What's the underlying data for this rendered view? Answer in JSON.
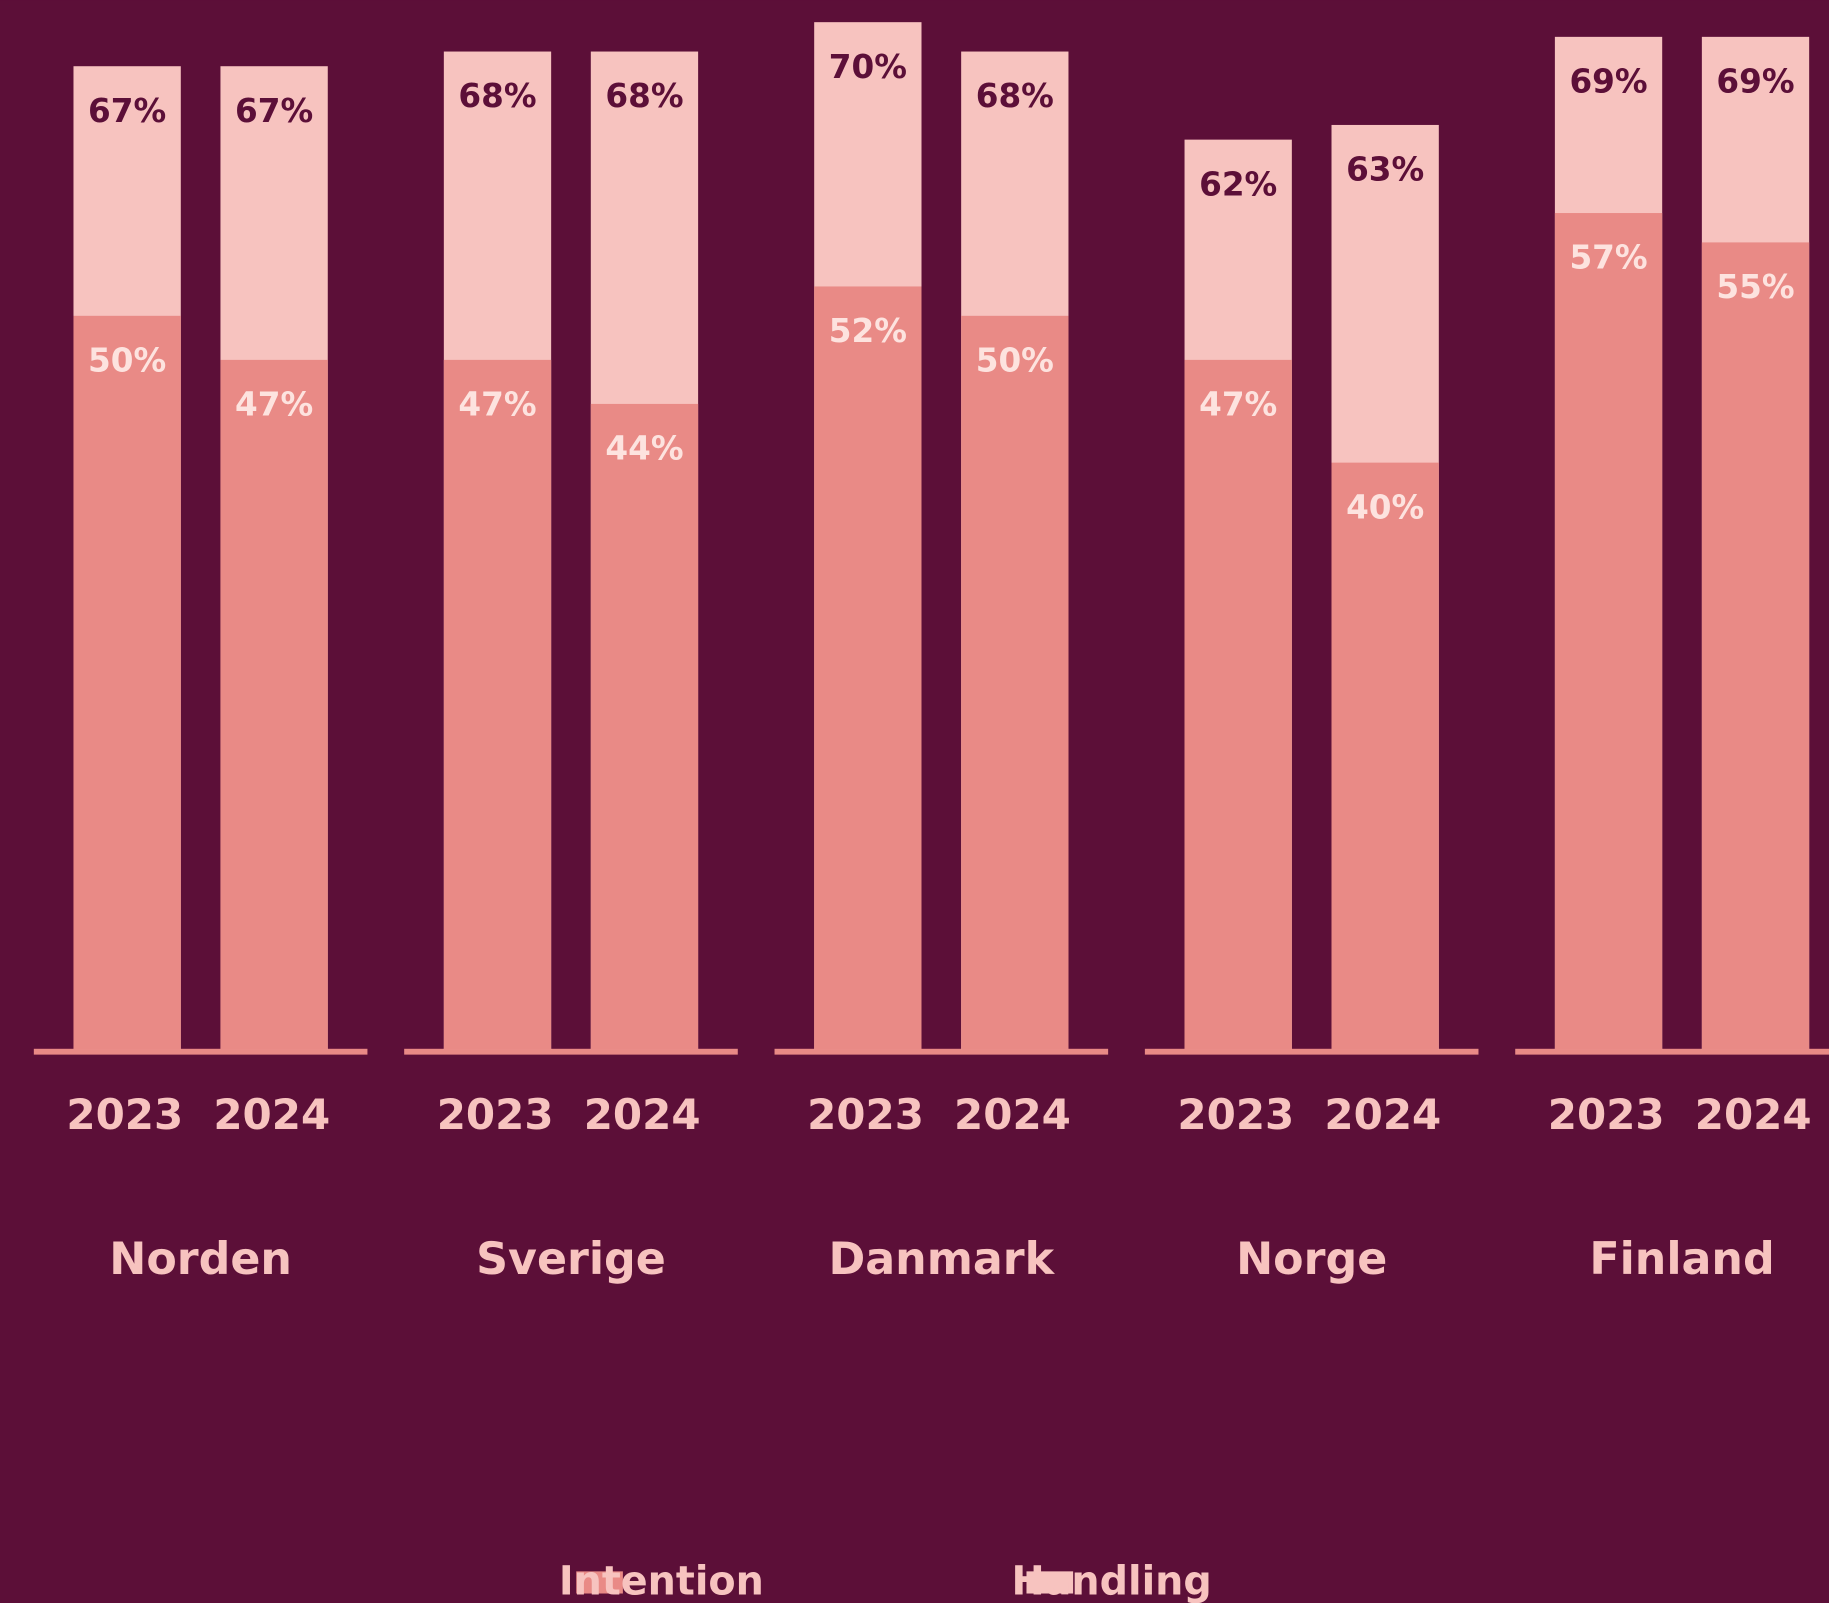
{
  "chart_data": {
    "type": "overlap_bar",
    "groups": [
      "Norden",
      "Sverige",
      "Danmark",
      "Norge",
      "Finland"
    ],
    "x": [
      "2023",
      "2024",
      "2023",
      "2024",
      "2023",
      "2024",
      "2023",
      "2024",
      "2023",
      "2024"
    ],
    "ylim": [
      0,
      71.5
    ],
    "background": "#5c0f38",
    "series": [
      {
        "name": "Intention",
        "color": "#e98a86",
        "label_color": "#fde3df",
        "values": [
          50,
          47,
          47,
          44,
          52,
          50,
          47,
          40,
          57,
          55
        ],
        "value_labels": [
          "50%",
          "47%",
          "47%",
          "44%",
          "52%",
          "50%",
          "47%",
          "40%",
          "57%",
          "55%"
        ]
      },
      {
        "name": "Handling",
        "color": "#f7c3bf",
        "label_color": "#5c0f38",
        "values": [
          67,
          67,
          68,
          68,
          70,
          68,
          62,
          63,
          69,
          69
        ],
        "value_labels": [
          "67%",
          "67%",
          "68%",
          "68%",
          "70%",
          "68%",
          "62%",
          "63%",
          "69%",
          "69%"
        ]
      }
    ]
  }
}
